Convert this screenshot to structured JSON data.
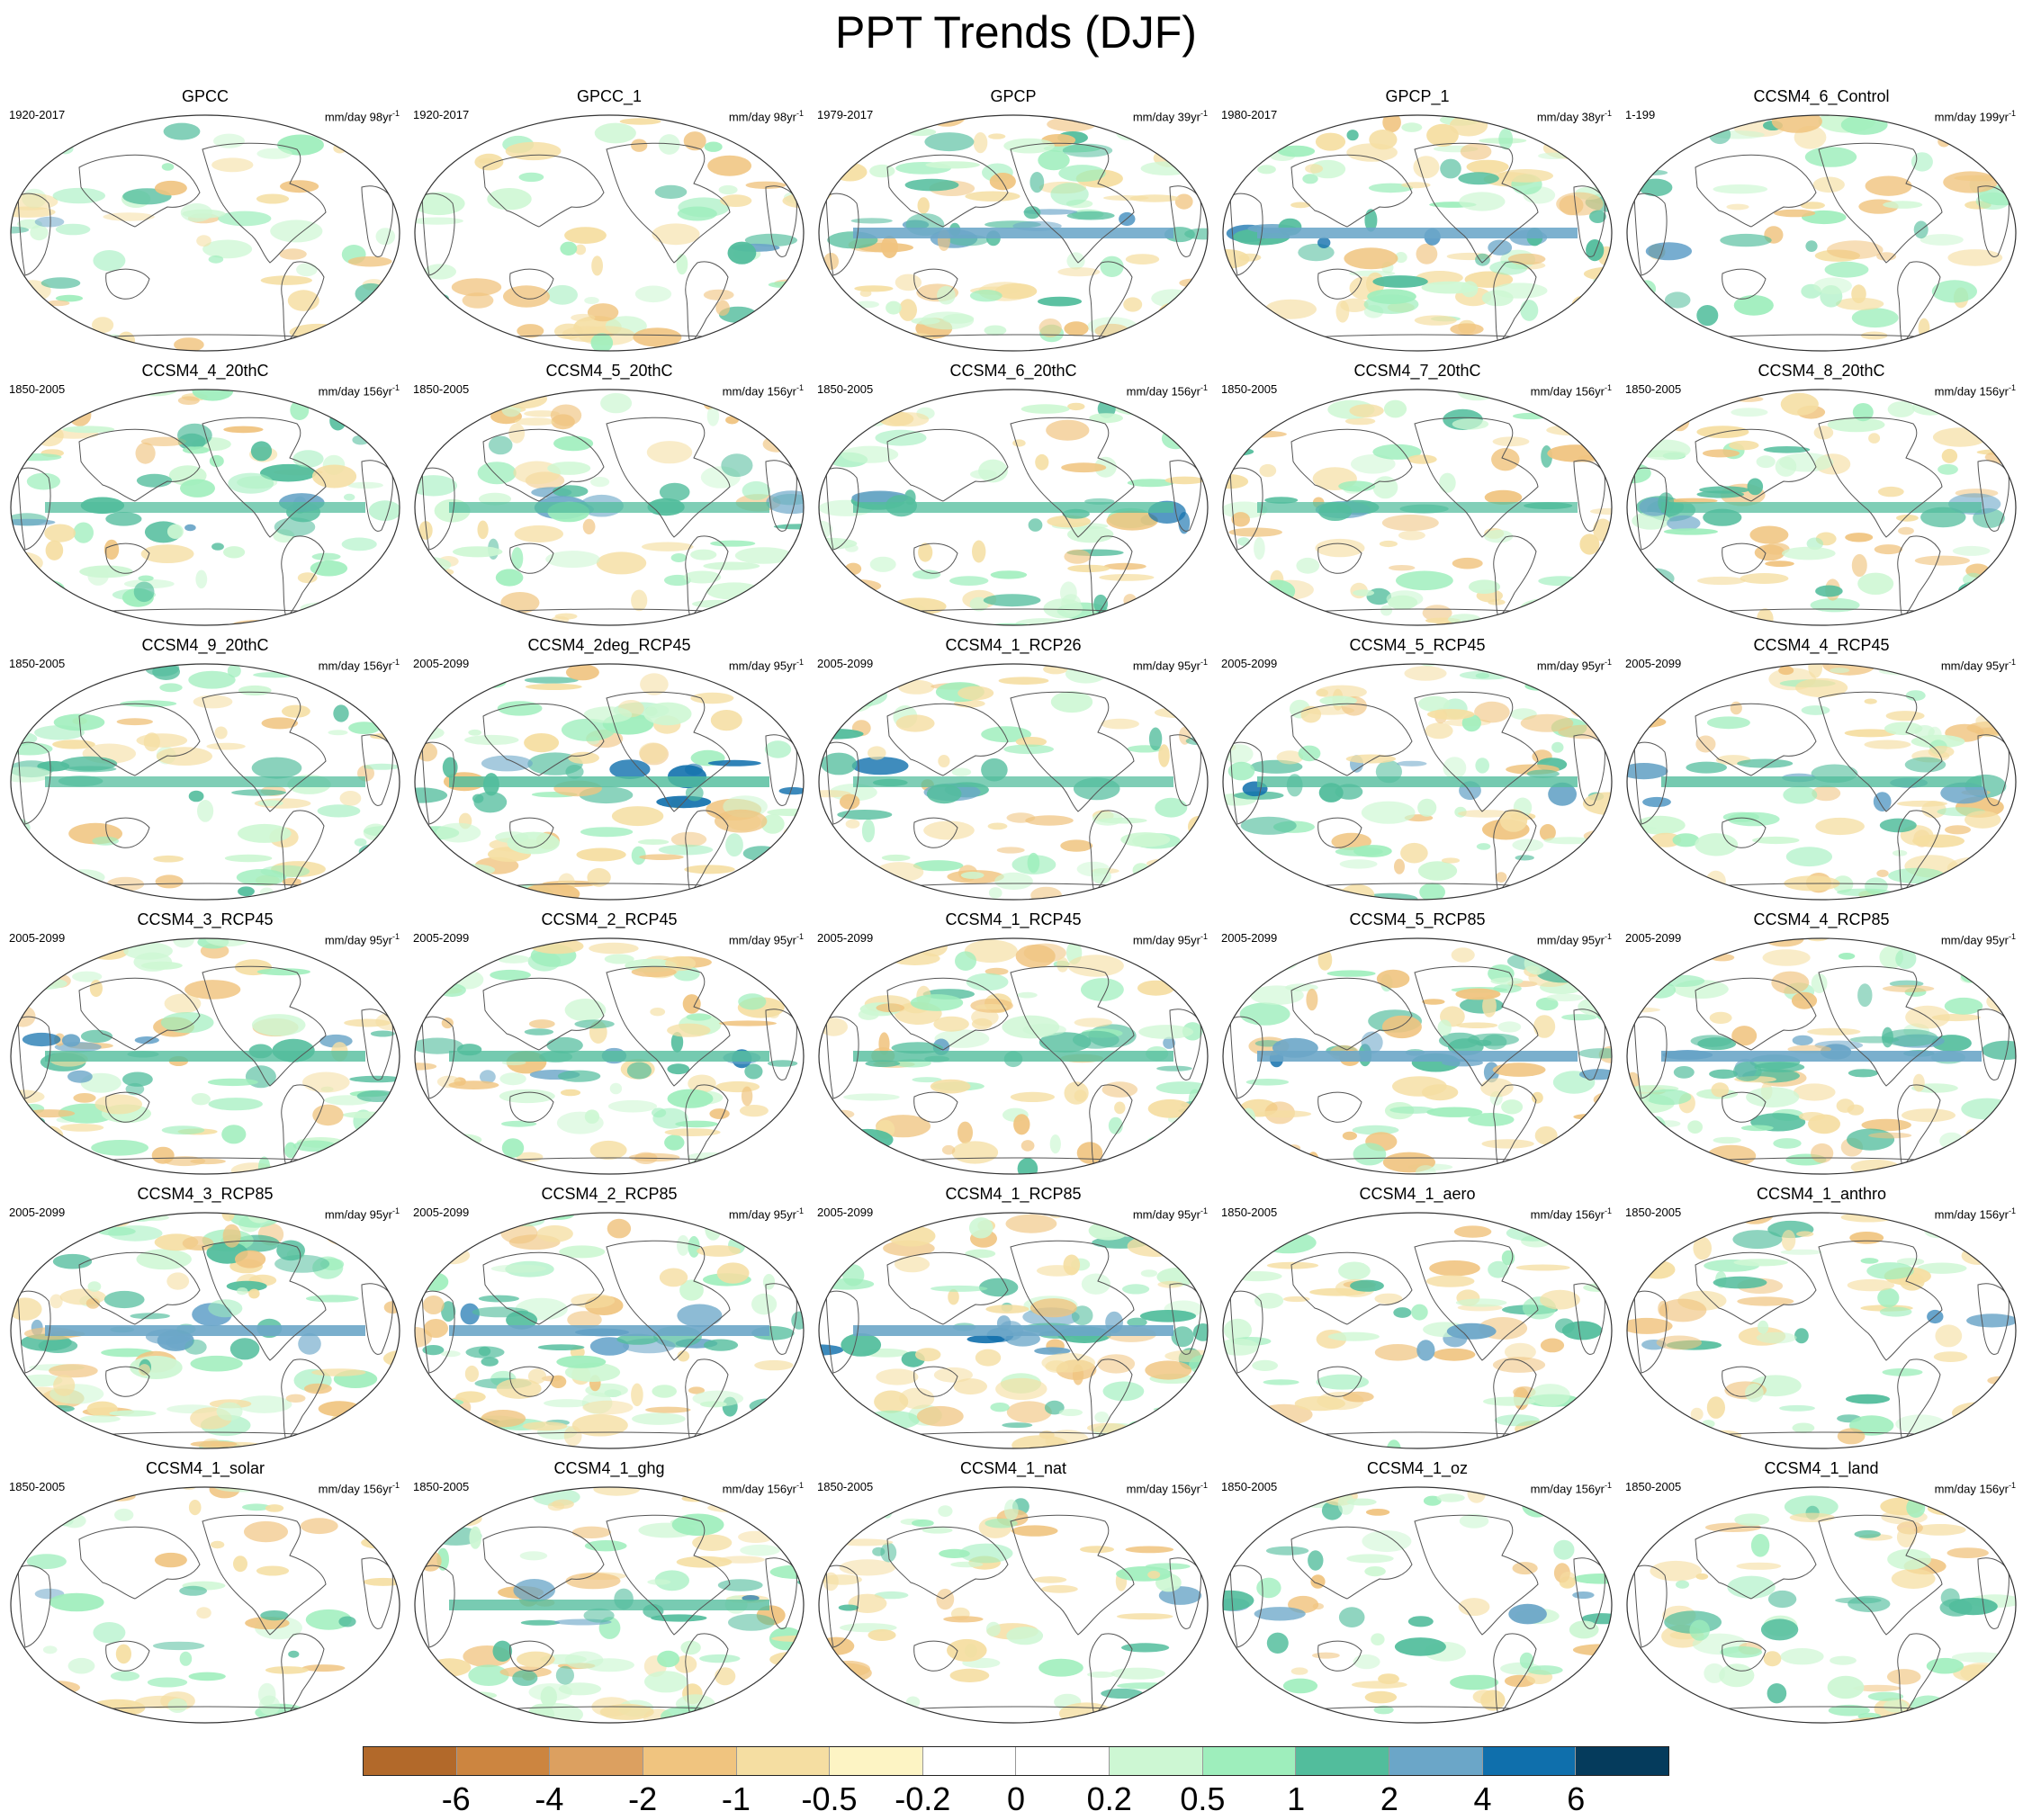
{
  "title": "PPT Trends (DJF)",
  "units_prefix": "mm/day ",
  "units_suffix": "yr",
  "units_exponent": "-1",
  "colorbar": {
    "colors": [
      "#b2692a",
      "#cc8540",
      "#dca060",
      "#f0c47f",
      "#f5dea2",
      "#fdf4c4",
      "#ffffff",
      "#ffffff",
      "#cdf7d3",
      "#9eeebc",
      "#52bd9c",
      "#6ba6c8",
      "#0f6fac",
      "#053b5c"
    ],
    "labels": [
      "-6",
      "-4",
      "-2",
      "-1",
      "-0.5",
      "-0.2",
      "0",
      "0.2",
      "0.5",
      "1",
      "2",
      "4",
      "6"
    ]
  },
  "panels": [
    {
      "name": "GPCC",
      "period": "1920-2017",
      "years": "98",
      "intensity": 0.35
    },
    {
      "name": "GPCC_1",
      "period": "1920-2017",
      "years": "98",
      "intensity": 0.35
    },
    {
      "name": "GPCP",
      "period": "1979-2017",
      "years": "39",
      "intensity": 0.95
    },
    {
      "name": "GPCP_1",
      "period": "1980-2017",
      "years": "38",
      "intensity": 0.95
    },
    {
      "name": "CCSM4_6_Control",
      "period": "1-199",
      "years": "199",
      "intensity": 0.35
    },
    {
      "name": "CCSM4_4_20thC",
      "period": "1850-2005",
      "years": "156",
      "intensity": 0.6
    },
    {
      "name": "CCSM4_5_20thC",
      "period": "1850-2005",
      "years": "156",
      "intensity": 0.6
    },
    {
      "name": "CCSM4_6_20thC",
      "period": "1850-2005",
      "years": "156",
      "intensity": 0.65
    },
    {
      "name": "CCSM4_7_20thC",
      "period": "1850-2005",
      "years": "156",
      "intensity": 0.55
    },
    {
      "name": "CCSM4_8_20thC",
      "period": "1850-2005",
      "years": "156",
      "intensity": 0.6
    },
    {
      "name": "CCSM4_9_20thC",
      "period": "1850-2005",
      "years": "156",
      "intensity": 0.6
    },
    {
      "name": "CCSM4_2deg_RCP45",
      "period": "2005-2099",
      "years": "95",
      "intensity": 0.8
    },
    {
      "name": "CCSM4_1_RCP26",
      "period": "2005-2099",
      "years": "95",
      "intensity": 0.6
    },
    {
      "name": "CCSM4_5_RCP45",
      "period": "2005-2099",
      "years": "95",
      "intensity": 0.75
    },
    {
      "name": "CCSM4_4_RCP45",
      "period": "2005-2099",
      "years": "95",
      "intensity": 0.75
    },
    {
      "name": "CCSM4_3_RCP45",
      "period": "2005-2099",
      "years": "95",
      "intensity": 0.75
    },
    {
      "name": "CCSM4_2_RCP45",
      "period": "2005-2099",
      "years": "95",
      "intensity": 0.75
    },
    {
      "name": "CCSM4_1_RCP45",
      "period": "2005-2099",
      "years": "95",
      "intensity": 0.75
    },
    {
      "name": "CCSM4_5_RCP85",
      "period": "2005-2099",
      "years": "95",
      "intensity": 1.0
    },
    {
      "name": "CCSM4_4_RCP85",
      "period": "2005-2099",
      "years": "95",
      "intensity": 1.0
    },
    {
      "name": "CCSM4_3_RCP85",
      "period": "2005-2099",
      "years": "95",
      "intensity": 1.0
    },
    {
      "name": "CCSM4_2_RCP85",
      "period": "2005-2099",
      "years": "95",
      "intensity": 1.0
    },
    {
      "name": "CCSM4_1_RCP85",
      "period": "2005-2099",
      "years": "95",
      "intensity": 1.0
    },
    {
      "name": "CCSM4_1_aero",
      "period": "1850-2005",
      "years": "156",
      "intensity": 0.45
    },
    {
      "name": "CCSM4_1_anthro",
      "period": "1850-2005",
      "years": "156",
      "intensity": 0.5
    },
    {
      "name": "CCSM4_1_solar",
      "period": "1850-2005",
      "years": "156",
      "intensity": 0.4
    },
    {
      "name": "CCSM4_1_ghg",
      "period": "1850-2005",
      "years": "156",
      "intensity": 0.7
    },
    {
      "name": "CCSM4_1_nat",
      "period": "1850-2005",
      "years": "156",
      "intensity": 0.45
    },
    {
      "name": "CCSM4_1_oz",
      "period": "1850-2005",
      "years": "156",
      "intensity": 0.5
    },
    {
      "name": "CCSM4_1_land",
      "period": "1850-2005",
      "years": "156",
      "intensity": 0.45
    }
  ]
}
